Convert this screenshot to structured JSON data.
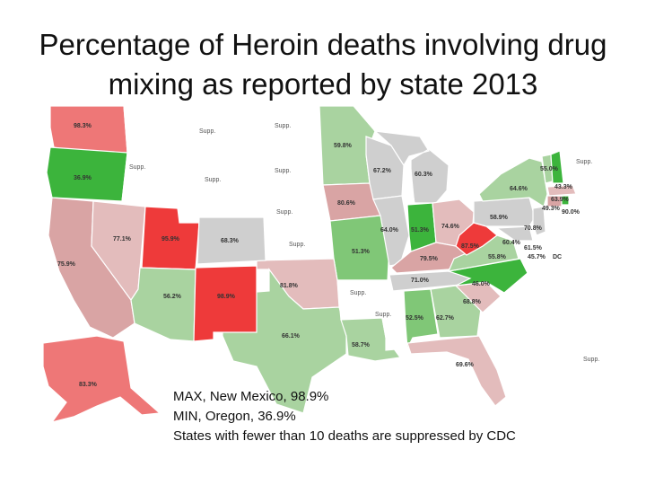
{
  "title": "Percentage of Heroin deaths involving drug mixing as reported by state 2013",
  "colors": {
    "high": "#ee3a3a",
    "mid_high": "#ee7777",
    "pink": "#d9a4a4",
    "pink_light": "#e3bcbc",
    "grey": "#cfcfcf",
    "green_light": "#a9d3a0",
    "green": "#80c777",
    "green_strong": "#3cb43c",
    "supp": "#ffffff",
    "background_lake": "#ffffff"
  },
  "states": {
    "WA": "98.3%",
    "OR": "36.9%",
    "ID": "Supp.",
    "MT": "Supp.",
    "WY": "Supp.",
    "ND": "Supp.",
    "SD": "Supp.",
    "NE": "Supp.",
    "KS": "Supp.",
    "CA": "75.9%",
    "NV": "77.1%",
    "UT": "95.9%",
    "CO": "68.3%",
    "AZ": "56.2%",
    "NM": "98.9%",
    "TX": "66.1%",
    "OK": "81.8%",
    "MN": "59.8%",
    "IA": "80.6%",
    "MO": "51.3%",
    "AR": "Supp.",
    "LA": "58.7%",
    "WI": "67.2%",
    "IL": "64.0%",
    "MI": "60.3%",
    "IN": "51.3%",
    "OH": "74.6%",
    "KY": "79.5%",
    "TN": "71.0%",
    "MS": "Supp.",
    "AL": "52.5%",
    "GA": "62.7%",
    "FL": "69.6%",
    "SC": "68.8%",
    "NC": "46.0%",
    "VA": "55.8%",
    "WV": "87.5%",
    "PA": "58.9%",
    "NY": "64.6%",
    "VT": "55.0%",
    "NH": "43.3%",
    "MA": "63.9%",
    "RI": "49.3%",
    "CT": "90.0%",
    "NJ": "70.8%",
    "DE": "60.4%",
    "MD": "61.5%",
    "DC": "45.7%",
    "DC_abbr": "DC",
    "ME": "Supp.",
    "AK": "83.3%",
    "HI": "Supp."
  },
  "notes": {
    "line1": "MAX, New Mexico, 98.9%",
    "line2": "MIN, Oregon, 36.9%",
    "line3": "States with fewer than 10 deaths are suppressed by CDC"
  }
}
